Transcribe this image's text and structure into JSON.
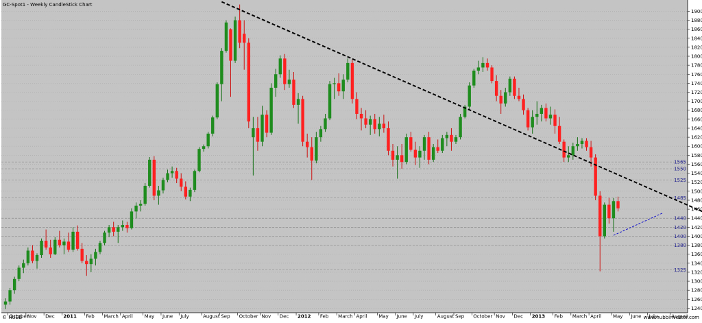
{
  "chart_data": {
    "type": "candlestick",
    "title": "GC-Spot1 - Weekly CandleStick Chart",
    "footer_left": "© HUBB",
    "footer_right": "www.hubbinvestor.com",
    "ylim": [
      1230,
      1925
    ],
    "y_ticks": [
      1240,
      1260,
      1280,
      1300,
      1320,
      1340,
      1360,
      1380,
      1400,
      1420,
      1440,
      1460,
      1480,
      1500,
      1520,
      1540,
      1560,
      1580,
      1600,
      1620,
      1640,
      1660,
      1680,
      1700,
      1720,
      1740,
      1760,
      1780,
      1800,
      1820,
      1840,
      1860,
      1880,
      1900
    ],
    "horizontal_levels": [
      1565,
      1550,
      1525,
      1485,
      1440,
      1420,
      1400,
      1380,
      1325
    ],
    "x_labels": [
      {
        "label": "October",
        "week": 1,
        "bold": false
      },
      {
        "label": "Nov",
        "week": 5,
        "bold": false
      },
      {
        "label": "Dec",
        "week": 9,
        "bold": false
      },
      {
        "label": "2011",
        "week": 13,
        "bold": true
      },
      {
        "label": "Feb",
        "week": 18,
        "bold": false
      },
      {
        "label": "March",
        "week": 22,
        "bold": false
      },
      {
        "label": "April",
        "week": 26,
        "bold": false
      },
      {
        "label": "May",
        "week": 31,
        "bold": false
      },
      {
        "label": "June",
        "week": 35,
        "bold": false
      },
      {
        "label": "July",
        "week": 39,
        "bold": false
      },
      {
        "label": "August",
        "week": 44,
        "bold": false
      },
      {
        "label": "Sep",
        "week": 48,
        "bold": false
      },
      {
        "label": "October",
        "week": 52,
        "bold": false
      },
      {
        "label": "Nov",
        "week": 57,
        "bold": false
      },
      {
        "label": "Dec",
        "week": 61,
        "bold": false
      },
      {
        "label": "2012",
        "week": 65,
        "bold": true
      },
      {
        "label": "Feb",
        "week": 70,
        "bold": false
      },
      {
        "label": "March",
        "week": 74,
        "bold": false
      },
      {
        "label": "April",
        "week": 78,
        "bold": false
      },
      {
        "label": "May",
        "week": 83,
        "bold": false
      },
      {
        "label": "June",
        "week": 87,
        "bold": false
      },
      {
        "label": "July",
        "week": 91,
        "bold": false
      },
      {
        "label": "August",
        "week": 96,
        "bold": false
      },
      {
        "label": "Sep",
        "week": 100,
        "bold": false
      },
      {
        "label": "October",
        "week": 104,
        "bold": false
      },
      {
        "label": "Nov",
        "week": 109,
        "bold": false
      },
      {
        "label": "Dec",
        "week": 113,
        "bold": false
      },
      {
        "label": "2013",
        "week": 117,
        "bold": true
      },
      {
        "label": "Feb",
        "week": 122,
        "bold": false
      },
      {
        "label": "March",
        "week": 126,
        "bold": false
      },
      {
        "label": "April",
        "week": 130,
        "bold": false
      },
      {
        "label": "May",
        "week": 135,
        "bold": false
      },
      {
        "label": "June",
        "week": 139,
        "bold": false
      },
      {
        "label": "July",
        "week": 143,
        "bold": false
      },
      {
        "label": "August",
        "week": 148,
        "bold": false
      }
    ],
    "candles": [
      {
        "o": 1248,
        "h": 1262,
        "l": 1238,
        "c": 1255
      },
      {
        "o": 1255,
        "h": 1285,
        "l": 1248,
        "c": 1280
      },
      {
        "o": 1280,
        "h": 1310,
        "l": 1272,
        "c": 1305
      },
      {
        "o": 1305,
        "h": 1335,
        "l": 1300,
        "c": 1330
      },
      {
        "o": 1330,
        "h": 1348,
        "l": 1318,
        "c": 1340
      },
      {
        "o": 1340,
        "h": 1375,
        "l": 1335,
        "c": 1368
      },
      {
        "o": 1368,
        "h": 1380,
        "l": 1340,
        "c": 1345
      },
      {
        "o": 1345,
        "h": 1362,
        "l": 1328,
        "c": 1358
      },
      {
        "o": 1358,
        "h": 1395,
        "l": 1352,
        "c": 1390
      },
      {
        "o": 1390,
        "h": 1415,
        "l": 1370,
        "c": 1375
      },
      {
        "o": 1375,
        "h": 1392,
        "l": 1352,
        "c": 1360
      },
      {
        "o": 1360,
        "h": 1398,
        "l": 1358,
        "c": 1392
      },
      {
        "o": 1392,
        "h": 1412,
        "l": 1375,
        "c": 1380
      },
      {
        "o": 1380,
        "h": 1395,
        "l": 1360,
        "c": 1388
      },
      {
        "o": 1388,
        "h": 1408,
        "l": 1365,
        "c": 1370
      },
      {
        "o": 1370,
        "h": 1420,
        "l": 1365,
        "c": 1410
      },
      {
        "o": 1410,
        "h": 1424,
        "l": 1368,
        "c": 1372
      },
      {
        "o": 1372,
        "h": 1385,
        "l": 1340,
        "c": 1345
      },
      {
        "o": 1345,
        "h": 1358,
        "l": 1312,
        "c": 1338
      },
      {
        "o": 1338,
        "h": 1360,
        "l": 1320,
        "c": 1350
      },
      {
        "o": 1350,
        "h": 1372,
        "l": 1335,
        "c": 1365
      },
      {
        "o": 1365,
        "h": 1390,
        "l": 1360,
        "c": 1385
      },
      {
        "o": 1385,
        "h": 1412,
        "l": 1380,
        "c": 1408
      },
      {
        "o": 1408,
        "h": 1425,
        "l": 1398,
        "c": 1420
      },
      {
        "o": 1420,
        "h": 1432,
        "l": 1400,
        "c": 1410
      },
      {
        "o": 1410,
        "h": 1425,
        "l": 1385,
        "c": 1420
      },
      {
        "o": 1420,
        "h": 1435,
        "l": 1412,
        "c": 1425
      },
      {
        "o": 1425,
        "h": 1432,
        "l": 1408,
        "c": 1418
      },
      {
        "o": 1418,
        "h": 1462,
        "l": 1415,
        "c": 1455
      },
      {
        "o": 1455,
        "h": 1475,
        "l": 1440,
        "c": 1468
      },
      {
        "o": 1468,
        "h": 1480,
        "l": 1455,
        "c": 1472
      },
      {
        "o": 1472,
        "h": 1518,
        "l": 1468,
        "c": 1512
      },
      {
        "o": 1512,
        "h": 1576,
        "l": 1508,
        "c": 1570
      },
      {
        "o": 1570,
        "h": 1578,
        "l": 1480,
        "c": 1490
      },
      {
        "o": 1490,
        "h": 1512,
        "l": 1470,
        "c": 1502
      },
      {
        "o": 1502,
        "h": 1530,
        "l": 1495,
        "c": 1525
      },
      {
        "o": 1525,
        "h": 1548,
        "l": 1520,
        "c": 1540
      },
      {
        "o": 1540,
        "h": 1555,
        "l": 1530,
        "c": 1545
      },
      {
        "o": 1545,
        "h": 1552,
        "l": 1518,
        "c": 1528
      },
      {
        "o": 1528,
        "h": 1540,
        "l": 1500,
        "c": 1510
      },
      {
        "o": 1510,
        "h": 1522,
        "l": 1482,
        "c": 1488
      },
      {
        "o": 1488,
        "h": 1508,
        "l": 1478,
        "c": 1503
      },
      {
        "o": 1503,
        "h": 1548,
        "l": 1498,
        "c": 1545
      },
      {
        "o": 1545,
        "h": 1598,
        "l": 1542,
        "c": 1594
      },
      {
        "o": 1594,
        "h": 1604,
        "l": 1588,
        "c": 1600
      },
      {
        "o": 1600,
        "h": 1632,
        "l": 1595,
        "c": 1628
      },
      {
        "o": 1628,
        "h": 1668,
        "l": 1622,
        "c": 1664
      },
      {
        "o": 1664,
        "h": 1742,
        "l": 1660,
        "c": 1738
      },
      {
        "o": 1738,
        "h": 1818,
        "l": 1700,
        "c": 1812
      },
      {
        "o": 1812,
        "h": 1880,
        "l": 1808,
        "c": 1875
      },
      {
        "o": 1860,
        "h": 1862,
        "l": 1710,
        "c": 1790
      },
      {
        "o": 1790,
        "h": 1888,
        "l": 1785,
        "c": 1880
      },
      {
        "o": 1880,
        "h": 1915,
        "l": 1818,
        "c": 1830
      },
      {
        "o": 1850,
        "h": 1880,
        "l": 1770,
        "c": 1830
      },
      {
        "o": 1830,
        "h": 1840,
        "l": 1640,
        "c": 1655
      },
      {
        "o": 1620,
        "h": 1665,
        "l": 1535,
        "c": 1640
      },
      {
        "o": 1640,
        "h": 1665,
        "l": 1590,
        "c": 1610
      },
      {
        "o": 1610,
        "h": 1690,
        "l": 1600,
        "c": 1670
      },
      {
        "o": 1670,
        "h": 1680,
        "l": 1620,
        "c": 1630
      },
      {
        "o": 1630,
        "h": 1740,
        "l": 1625,
        "c": 1730
      },
      {
        "o": 1730,
        "h": 1772,
        "l": 1710,
        "c": 1760
      },
      {
        "o": 1760,
        "h": 1802,
        "l": 1752,
        "c": 1795
      },
      {
        "o": 1795,
        "h": 1805,
        "l": 1725,
        "c": 1738
      },
      {
        "o": 1738,
        "h": 1770,
        "l": 1730,
        "c": 1748
      },
      {
        "o": 1748,
        "h": 1765,
        "l": 1685,
        "c": 1692
      },
      {
        "o": 1692,
        "h": 1718,
        "l": 1650,
        "c": 1705
      },
      {
        "o": 1705,
        "h": 1712,
        "l": 1600,
        "c": 1610
      },
      {
        "o": 1610,
        "h": 1628,
        "l": 1575,
        "c": 1598
      },
      {
        "o": 1598,
        "h": 1620,
        "l": 1525,
        "c": 1568
      },
      {
        "o": 1568,
        "h": 1632,
        "l": 1562,
        "c": 1620
      },
      {
        "o": 1620,
        "h": 1645,
        "l": 1610,
        "c": 1638
      },
      {
        "o": 1638,
        "h": 1672,
        "l": 1632,
        "c": 1662
      },
      {
        "o": 1662,
        "h": 1745,
        "l": 1658,
        "c": 1738
      },
      {
        "o": 1738,
        "h": 1752,
        "l": 1705,
        "c": 1740
      },
      {
        "o": 1740,
        "h": 1762,
        "l": 1712,
        "c": 1722
      },
      {
        "o": 1722,
        "h": 1760,
        "l": 1705,
        "c": 1748
      },
      {
        "o": 1748,
        "h": 1795,
        "l": 1742,
        "c": 1785
      },
      {
        "o": 1785,
        "h": 1792,
        "l": 1695,
        "c": 1705
      },
      {
        "o": 1705,
        "h": 1720,
        "l": 1660,
        "c": 1672
      },
      {
        "o": 1672,
        "h": 1685,
        "l": 1635,
        "c": 1662
      },
      {
        "o": 1662,
        "h": 1680,
        "l": 1640,
        "c": 1648
      },
      {
        "o": 1648,
        "h": 1668,
        "l": 1625,
        "c": 1660
      },
      {
        "o": 1660,
        "h": 1672,
        "l": 1628,
        "c": 1638
      },
      {
        "o": 1638,
        "h": 1665,
        "l": 1622,
        "c": 1650
      },
      {
        "o": 1650,
        "h": 1670,
        "l": 1630,
        "c": 1640
      },
      {
        "o": 1640,
        "h": 1655,
        "l": 1580,
        "c": 1590
      },
      {
        "o": 1590,
        "h": 1605,
        "l": 1555,
        "c": 1570
      },
      {
        "o": 1570,
        "h": 1600,
        "l": 1528,
        "c": 1580
      },
      {
        "o": 1580,
        "h": 1605,
        "l": 1550,
        "c": 1565
      },
      {
        "o": 1565,
        "h": 1628,
        "l": 1560,
        "c": 1620
      },
      {
        "o": 1620,
        "h": 1632,
        "l": 1588,
        "c": 1592
      },
      {
        "o": 1592,
        "h": 1610,
        "l": 1558,
        "c": 1575
      },
      {
        "o": 1575,
        "h": 1600,
        "l": 1552,
        "c": 1590
      },
      {
        "o": 1590,
        "h": 1625,
        "l": 1570,
        "c": 1620
      },
      {
        "o": 1620,
        "h": 1632,
        "l": 1560,
        "c": 1570
      },
      {
        "o": 1570,
        "h": 1605,
        "l": 1565,
        "c": 1598
      },
      {
        "o": 1598,
        "h": 1615,
        "l": 1585,
        "c": 1590
      },
      {
        "o": 1590,
        "h": 1625,
        "l": 1585,
        "c": 1618
      },
      {
        "o": 1618,
        "h": 1632,
        "l": 1600,
        "c": 1625
      },
      {
        "o": 1625,
        "h": 1640,
        "l": 1590,
        "c": 1610
      },
      {
        "o": 1610,
        "h": 1625,
        "l": 1605,
        "c": 1620
      },
      {
        "o": 1620,
        "h": 1672,
        "l": 1615,
        "c": 1665
      },
      {
        "o": 1665,
        "h": 1692,
        "l": 1662,
        "c": 1688
      },
      {
        "o": 1688,
        "h": 1742,
        "l": 1682,
        "c": 1735
      },
      {
        "o": 1735,
        "h": 1772,
        "l": 1730,
        "c": 1768
      },
      {
        "o": 1768,
        "h": 1790,
        "l": 1760,
        "c": 1775
      },
      {
        "o": 1775,
        "h": 1798,
        "l": 1765,
        "c": 1785
      },
      {
        "o": 1785,
        "h": 1795,
        "l": 1768,
        "c": 1775
      },
      {
        "o": 1775,
        "h": 1780,
        "l": 1740,
        "c": 1745
      },
      {
        "o": 1745,
        "h": 1758,
        "l": 1700,
        "c": 1712
      },
      {
        "o": 1712,
        "h": 1725,
        "l": 1672,
        "c": 1695
      },
      {
        "o": 1695,
        "h": 1730,
        "l": 1688,
        "c": 1720
      },
      {
        "o": 1720,
        "h": 1755,
        "l": 1712,
        "c": 1750
      },
      {
        "o": 1750,
        "h": 1755,
        "l": 1705,
        "c": 1712
      },
      {
        "o": 1712,
        "h": 1730,
        "l": 1700,
        "c": 1705
      },
      {
        "o": 1705,
        "h": 1715,
        "l": 1670,
        "c": 1680
      },
      {
        "o": 1680,
        "h": 1685,
        "l": 1635,
        "c": 1642
      },
      {
        "o": 1642,
        "h": 1680,
        "l": 1628,
        "c": 1665
      },
      {
        "o": 1665,
        "h": 1700,
        "l": 1648,
        "c": 1672
      },
      {
        "o": 1672,
        "h": 1692,
        "l": 1655,
        "c": 1685
      },
      {
        "o": 1685,
        "h": 1695,
        "l": 1655,
        "c": 1662
      },
      {
        "o": 1662,
        "h": 1688,
        "l": 1648,
        "c": 1670
      },
      {
        "o": 1670,
        "h": 1682,
        "l": 1628,
        "c": 1645
      },
      {
        "o": 1645,
        "h": 1665,
        "l": 1605,
        "c": 1610
      },
      {
        "o": 1610,
        "h": 1615,
        "l": 1565,
        "c": 1575
      },
      {
        "o": 1575,
        "h": 1600,
        "l": 1565,
        "c": 1580
      },
      {
        "o": 1580,
        "h": 1608,
        "l": 1570,
        "c": 1600
      },
      {
        "o": 1600,
        "h": 1620,
        "l": 1590,
        "c": 1605
      },
      {
        "o": 1605,
        "h": 1618,
        "l": 1595,
        "c": 1612
      },
      {
        "o": 1612,
        "h": 1618,
        "l": 1590,
        "c": 1598
      },
      {
        "o": 1598,
        "h": 1612,
        "l": 1555,
        "c": 1575
      },
      {
        "o": 1575,
        "h": 1582,
        "l": 1480,
        "c": 1490
      },
      {
        "o": 1490,
        "h": 1500,
        "l": 1322,
        "c": 1400
      },
      {
        "o": 1400,
        "h": 1475,
        "l": 1395,
        "c": 1470
      },
      {
        "o": 1470,
        "h": 1485,
        "l": 1428,
        "c": 1440
      },
      {
        "o": 1440,
        "h": 1485,
        "l": 1410,
        "c": 1478
      },
      {
        "o": 1478,
        "h": 1488,
        "l": 1455,
        "c": 1462
      }
    ],
    "trendlines": [
      {
        "name": "resistance",
        "style": "dashed-black",
        "p1": {
          "week": 48,
          "price": 1921
        },
        "p2": {
          "week": 165,
          "price": 1410
        }
      },
      {
        "name": "support",
        "style": "dashed-blue",
        "p1": {
          "week": 135,
          "price": 1402
        },
        "p2": {
          "week": 146,
          "price": 1452
        }
      }
    ]
  },
  "colors": {
    "background": "#c4c4c4",
    "axis_background": "#ffffff",
    "grid": "#a8a8a8",
    "up": "#1e8c1e",
    "down": "#ff2020",
    "wick_up": "#157015",
    "wick_down": "#cc1010",
    "trend_black": "#000000",
    "trend_blue": "#1010cc",
    "level_label": "#1f1f8f"
  }
}
